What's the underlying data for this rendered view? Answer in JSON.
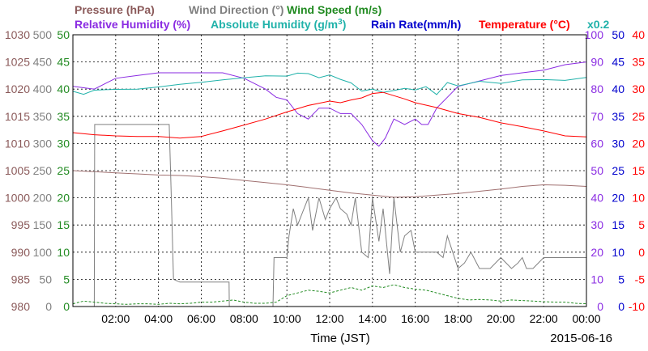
{
  "chart_data": {
    "type": "line",
    "title_row1": [
      {
        "text": "Pressure (hPa)",
        "color": "#8b5a5a"
      },
      {
        "text": "Wind Direction (°)",
        "color": "#808080"
      },
      {
        "text": "Wind Speed (m/s)",
        "color": "#228b22"
      }
    ],
    "title_row2": [
      {
        "text": "Relative Humidity (%)",
        "color": "#8a2be2"
      },
      {
        "text": "Absolute Humidity (g/m",
        "sup": "3",
        "after": ")",
        "color": "#20b2aa"
      },
      {
        "text": "Rain Rate(mm/h)",
        "color": "#0000cd"
      },
      {
        "text": "Temperature (°C)",
        "color": "#ff0000"
      },
      {
        "text": "x0.2",
        "color": "#20b2aa"
      }
    ],
    "xlabel": "Time (JST)",
    "date": "2015-06-16",
    "x_ticks": [
      "02:00",
      "04:00",
      "06:00",
      "08:00",
      "10:00",
      "12:00",
      "14:00",
      "16:00",
      "18:00",
      "20:00",
      "22:00",
      "00:00"
    ],
    "xlim_hours": [
      0,
      24
    ],
    "grid": true,
    "axes": [
      {
        "name": "Pressure",
        "side": "left",
        "color": "#8b5a5a",
        "range": [
          980,
          1030
        ],
        "ticks": [
          "980",
          "985",
          "990",
          "995",
          "1000",
          "1005",
          "1010",
          "1015",
          "1020",
          "1025",
          "1030"
        ]
      },
      {
        "name": "Wind Direction",
        "side": "left",
        "color": "#808080",
        "range": [
          0,
          500
        ],
        "ticks": [
          "0",
          "50",
          "100",
          "150",
          "200",
          "250",
          "300",
          "350",
          "400",
          "450",
          "500"
        ]
      },
      {
        "name": "Wind Speed",
        "side": "left",
        "color": "#228b22",
        "range": [
          0,
          50
        ],
        "ticks": [
          "0",
          "5",
          "10",
          "15",
          "20",
          "25",
          "30",
          "35",
          "40",
          "45",
          "50"
        ]
      },
      {
        "name": "Relative Humidity",
        "side": "right",
        "color": "#8a2be2",
        "range": [
          0,
          100
        ],
        "ticks": [
          "0",
          "10",
          "20",
          "30",
          "40",
          "50",
          "60",
          "70",
          "80",
          "90",
          "100"
        ]
      },
      {
        "name": "Rain Rate",
        "side": "right",
        "color": "#0000cd",
        "range": [
          0,
          50
        ],
        "ticks": [
          "0",
          "5",
          "10",
          "15",
          "20",
          "25",
          "30",
          "35",
          "40",
          "45",
          "50"
        ]
      },
      {
        "name": "Temperature",
        "side": "right",
        "color": "#ff0000",
        "range": [
          -10,
          40
        ],
        "ticks": [
          "-10",
          "-5",
          "0",
          "5",
          "10",
          "15",
          "20",
          "25",
          "30",
          "35",
          "40"
        ]
      }
    ],
    "series": [
      {
        "name": "Pressure (hPa)",
        "axis": "Pressure",
        "color": "#a07070",
        "style": "solid",
        "x": [
          0,
          1,
          2,
          3,
          4,
          5,
          6,
          7,
          8,
          9,
          10,
          11,
          12,
          13,
          14,
          15,
          16,
          17,
          18,
          19,
          20,
          21,
          22,
          23,
          24
        ],
        "y": [
          1005.0,
          1004.8,
          1004.6,
          1004.4,
          1004.2,
          1004.1,
          1003.9,
          1003.6,
          1003.2,
          1002.8,
          1002.4,
          1001.9,
          1001.4,
          1000.9,
          1000.5,
          1000.1,
          1000.2,
          1000.5,
          1000.8,
          1001.2,
          1001.6,
          1002.1,
          1002.4,
          1002.3,
          1002.1
        ]
      },
      {
        "name": "Wind Direction (°)",
        "axis": "Wind Direction",
        "color": "#808080",
        "style": "solid",
        "x": [
          0,
          0.3,
          0.5,
          0.8,
          1.0,
          1.02,
          2,
          3,
          4,
          4.5,
          4.6,
          4.7,
          5.0,
          5.5,
          6,
          6.5,
          7,
          7.3,
          7.31,
          8,
          9,
          9.35,
          9.4,
          10,
          10.1,
          10.3,
          10.5,
          10.8,
          11,
          11.2,
          11.5,
          11.8,
          12,
          12.3,
          12.5,
          12.8,
          13,
          13.2,
          13.5,
          13.8,
          14,
          14.3,
          14.5,
          14.8,
          15,
          15.3,
          15.5,
          15.8,
          16,
          16.5,
          17,
          17.3,
          17.5,
          18,
          18.3,
          18.6,
          19,
          19.5,
          20,
          20.5,
          20.8,
          21,
          21.2,
          21.5,
          22,
          22.5,
          23,
          24
        ],
        "y": [
          0,
          0,
          0,
          0,
          0,
          335,
          335,
          335,
          335,
          335,
          200,
          50,
          45,
          45,
          45,
          45,
          45,
          45,
          0,
          0,
          0,
          0,
          90,
          90,
          130,
          180,
          150,
          180,
          200,
          140,
          200,
          160,
          180,
          200,
          180,
          170,
          150,
          200,
          100,
          90,
          200,
          120,
          180,
          60,
          200,
          100,
          130,
          140,
          100,
          100,
          100,
          90,
          130,
          70,
          80,
          100,
          70,
          70,
          90,
          70,
          80,
          90,
          70,
          70,
          90,
          90,
          90,
          90
        ]
      },
      {
        "name": "Wind Speed (m/s)",
        "axis": "Wind Speed",
        "color": "#228b22",
        "style": "dashed",
        "x": [
          0,
          0.5,
          1,
          1.5,
          2,
          2.5,
          3,
          3.5,
          4,
          4.5,
          5,
          5.5,
          6,
          6.5,
          7,
          7.5,
          8,
          8.5,
          9,
          9.5,
          10,
          10.5,
          11,
          11.5,
          12,
          12.5,
          13,
          13.5,
          14,
          14.5,
          15,
          15.5,
          16,
          16.5,
          17,
          17.5,
          18,
          18.5,
          19,
          19.5,
          20,
          20.5,
          21,
          21.5,
          22,
          22.5,
          23,
          23.5,
          24
        ],
        "y": [
          0.5,
          1.0,
          0.8,
          0.6,
          0.5,
          0.4,
          0.5,
          0.5,
          0.4,
          0.6,
          0.5,
          0.6,
          0.8,
          0.8,
          1.0,
          1.2,
          0.8,
          0.6,
          0.6,
          0.8,
          2.0,
          2.5,
          3.0,
          2.8,
          2.5,
          3.0,
          3.5,
          3.0,
          3.8,
          3.5,
          4.0,
          3.5,
          3.2,
          3.0,
          2.5,
          2.0,
          1.5,
          1.2,
          1.3,
          1.2,
          1.0,
          1.2,
          1.1,
          1.0,
          0.9,
          0.8,
          0.8,
          0.6,
          0.5
        ]
      },
      {
        "name": "Relative Humidity (%)",
        "axis": "Relative Humidity",
        "color": "#8a2be2",
        "style": "solid",
        "x": [
          0,
          1,
          2,
          3,
          4,
          5,
          6,
          7,
          8,
          9,
          9.5,
          10,
          10.5,
          11,
          11.5,
          12,
          12.5,
          13,
          13.5,
          14,
          14.3,
          14.6,
          15,
          15.5,
          16,
          16.3,
          16.6,
          17,
          17.5,
          18,
          19,
          20,
          21,
          22,
          23,
          24
        ],
        "y": [
          81,
          80,
          84,
          85,
          86,
          86,
          86,
          86,
          84,
          80,
          77,
          76,
          71,
          69,
          73,
          73,
          71,
          71,
          67,
          61,
          59,
          62,
          69,
          67,
          69,
          67,
          67,
          73,
          77,
          81,
          83,
          85,
          86,
          87,
          89,
          90
        ]
      },
      {
        "name": "Absolute Humidity (g/m3)",
        "axis": "Relative Humidity",
        "color": "#20b2aa",
        "style": "solid",
        "x": [
          0,
          0.5,
          1,
          1.5,
          2,
          3,
          4,
          5,
          6,
          7,
          8,
          9,
          10,
          10.5,
          11,
          11.5,
          12,
          12.5,
          13,
          13.5,
          14,
          14.5,
          15,
          15.5,
          16,
          16.5,
          17,
          17.5,
          18,
          19,
          20,
          21,
          22,
          23,
          24
        ],
        "y": [
          79.2,
          78.1,
          79.6,
          79.8,
          79.9,
          80.0,
          80.8,
          81.8,
          82.5,
          83.4,
          84.2,
          84.9,
          84.8,
          85.9,
          85.7,
          84.2,
          85.2,
          83.6,
          82.3,
          79.3,
          80.0,
          78.8,
          79.5,
          80.3,
          79.7,
          80.9,
          78.0,
          82.4,
          81.2,
          82.9,
          82.1,
          83.4,
          83.5,
          83.2,
          84.3
        ]
      },
      {
        "name": "Rain Rate(mm/h)",
        "axis": "Rain Rate",
        "color": "#0000cd",
        "style": "solid",
        "x": [
          0,
          24
        ],
        "y": [
          0,
          0
        ]
      },
      {
        "name": "Temperature (°C)",
        "axis": "Temperature",
        "color": "#ff0000",
        "style": "solid",
        "x": [
          0,
          1,
          2,
          3,
          4,
          5,
          6,
          7,
          8,
          9,
          10,
          11,
          12,
          12.5,
          13,
          13.5,
          14,
          14.5,
          15,
          15.5,
          16,
          17,
          18,
          19,
          20,
          21,
          22,
          23,
          24
        ],
        "y": [
          22.0,
          21.6,
          21.4,
          21.3,
          21.3,
          21.0,
          21.3,
          22.3,
          23.4,
          24.5,
          25.8,
          27.0,
          27.8,
          27.5,
          28.0,
          28.4,
          29.2,
          29.4,
          28.8,
          28.2,
          27.5,
          26.6,
          25.5,
          24.8,
          23.8,
          23.1,
          22.3,
          21.4,
          21.2
        ]
      }
    ]
  }
}
